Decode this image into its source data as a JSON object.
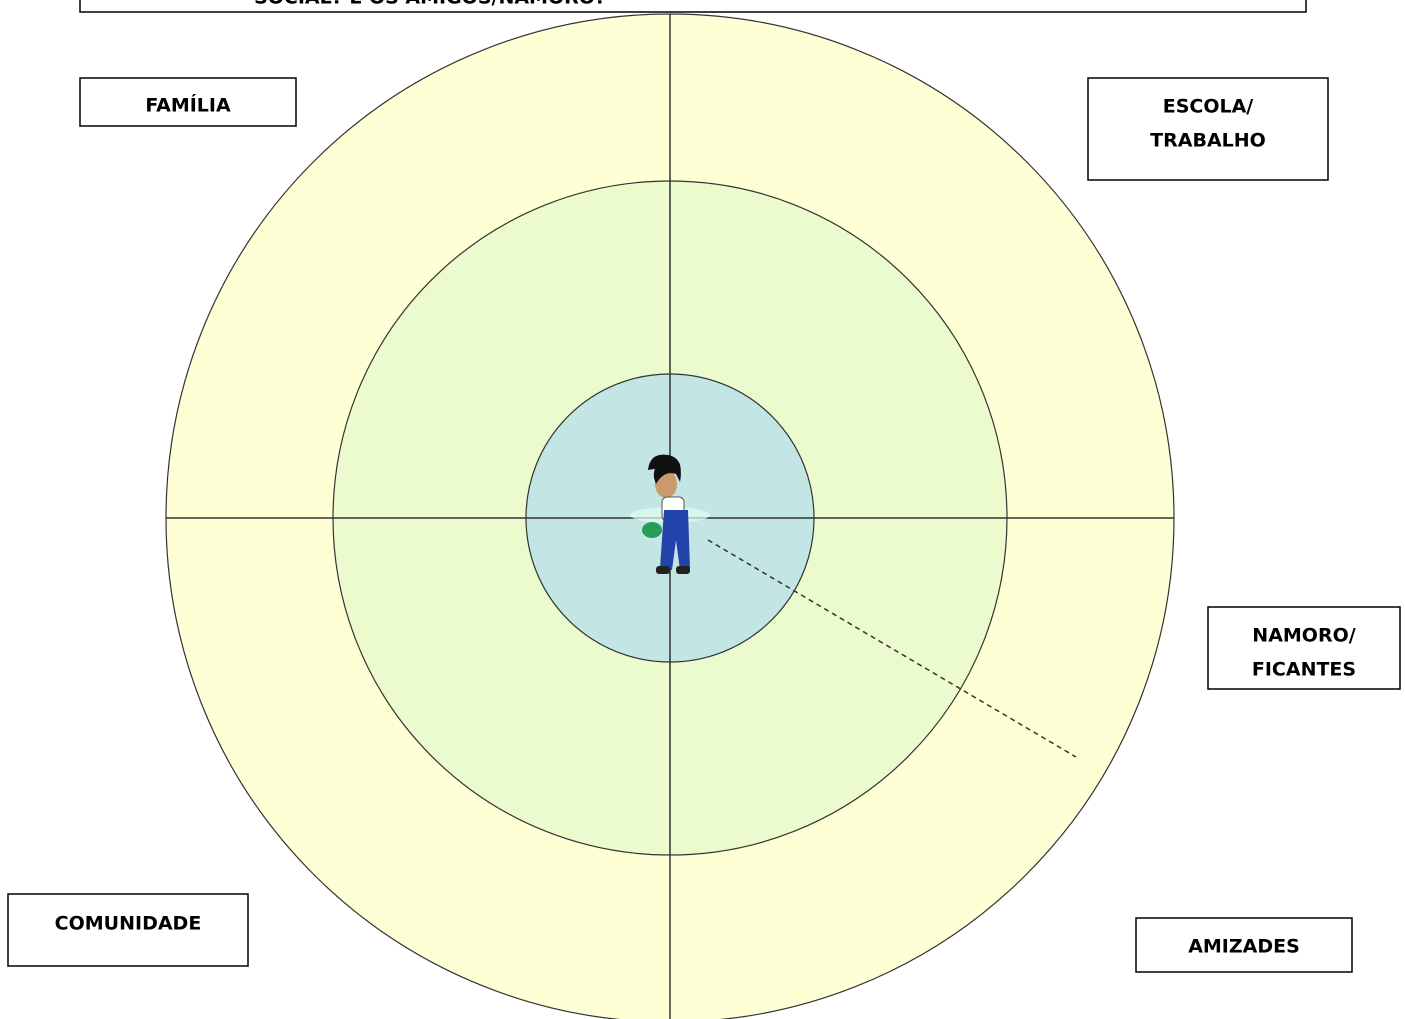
{
  "header": {
    "text": "SOCIAL? E OS AMIGOS/NAMORO?"
  },
  "labels": [
    {
      "lines": [
        "FAMÍLIA"
      ]
    },
    {
      "lines": [
        "ESCOLA/",
        "TRABALHO"
      ]
    },
    {
      "lines": [
        "NAMORO/",
        "FICANTES"
      ]
    },
    {
      "lines": [
        "COMUNIDADE"
      ]
    },
    {
      "lines": [
        "AMIZADES"
      ]
    }
  ]
}
